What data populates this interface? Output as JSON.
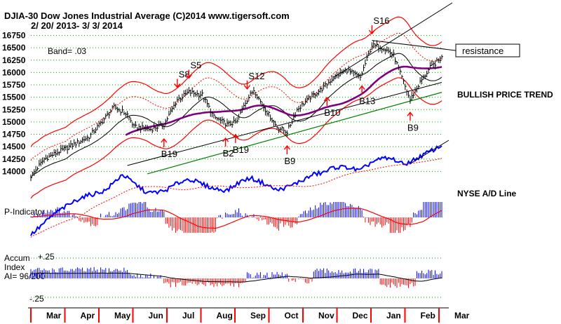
{
  "header": {
    "title": "DJIA-30  Dow Jones Industrial Average   (C)2014 www.tigersoft.com",
    "date_range": "2/ 20/ 2013- 3/ 3/ 2014",
    "band": "Band= .03"
  },
  "annotations": {
    "resistance": "resistance",
    "trend": "BULLISH PRICE TREND",
    "ad_line": "NYSE A/D Line",
    "p_indicator": "P-Indicator",
    "accum_line1": "Accum",
    "accum_line2": "Index",
    "accum_line3": "AI= 96/200",
    "accum_top": "+.25",
    "accum_bottom": "-.25"
  },
  "signals": [
    {
      "label": "S16",
      "type": "sell",
      "index": 205
    },
    {
      "label": "S8",
      "type": "sell",
      "index": 88
    },
    {
      "label": "S5",
      "type": "sell",
      "index": 95
    },
    {
      "label": "S12",
      "type": "sell",
      "index": 130
    },
    {
      "label": "B19",
      "type": "buy",
      "index": 80
    },
    {
      "label": "B2",
      "type": "buy",
      "index": 117
    },
    {
      "label": "B19",
      "type": "buy",
      "index": 123
    },
    {
      "label": "B9",
      "type": "buy",
      "index": 154
    },
    {
      "label": "B10",
      "type": "buy",
      "index": 178
    },
    {
      "label": "B13",
      "type": "buy",
      "index": 199
    },
    {
      "label": "B9",
      "type": "buy",
      "index": 228
    }
  ],
  "colors": {
    "price_bar": "#000000",
    "band": "#ff0000",
    "ma_purple": "#800080",
    "support_green": "#008000",
    "ad_line": "#0000ff",
    "p_pos": "#0000ff",
    "p_neg": "#ff0000",
    "grid": "#00aa00"
  },
  "chart_data": {
    "type": "line",
    "title": "DJIA-30  Dow Jones Industrial Average",
    "ylim": [
      13850,
      16800
    ],
    "y_ticks": [
      "16750",
      "16500",
      "16250",
      "16000",
      "15750",
      "15500",
      "15250",
      "15000",
      "14750",
      "14500",
      "14250",
      "14000"
    ],
    "x_ticks": [
      "Mar",
      "Apr",
      "May",
      "Jun",
      "Jul",
      "Aug",
      "Sep",
      "Oct",
      "Nov",
      "Dec",
      "Jan",
      "Feb",
      "Mar"
    ],
    "series": [
      {
        "name": "DJIA-30",
        "points": [
          [
            0,
            13900
          ],
          [
            8,
            14250
          ],
          [
            20,
            14450
          ],
          [
            35,
            14700
          ],
          [
            50,
            15300
          ],
          [
            58,
            15150
          ],
          [
            62,
            14900
          ],
          [
            72,
            14850
          ],
          [
            80,
            14950
          ],
          [
            88,
            15450
          ],
          [
            95,
            15600
          ],
          [
            103,
            15550
          ],
          [
            110,
            15100
          ],
          [
            118,
            14950
          ],
          [
            124,
            15000
          ],
          [
            128,
            15350
          ],
          [
            134,
            15650
          ],
          [
            140,
            15300
          ],
          [
            148,
            14900
          ],
          [
            154,
            14800
          ],
          [
            160,
            15250
          ],
          [
            168,
            15500
          ],
          [
            176,
            15700
          ],
          [
            182,
            15900
          ],
          [
            190,
            16050
          ],
          [
            198,
            15900
          ],
          [
            205,
            16550
          ],
          [
            212,
            16500
          ],
          [
            218,
            16350
          ],
          [
            224,
            15800
          ],
          [
            228,
            15450
          ],
          [
            234,
            15800
          ],
          [
            240,
            16100
          ],
          [
            247,
            16300
          ]
        ]
      },
      {
        "name": "NYSE A/D Line",
        "points": [
          [
            0,
            0.0
          ],
          [
            15,
            0.25
          ],
          [
            30,
            0.42
          ],
          [
            45,
            0.5
          ],
          [
            55,
            0.68
          ],
          [
            62,
            0.58
          ],
          [
            70,
            0.47
          ],
          [
            80,
            0.49
          ],
          [
            88,
            0.58
          ],
          [
            95,
            0.63
          ],
          [
            103,
            0.57
          ],
          [
            110,
            0.52
          ],
          [
            118,
            0.5
          ],
          [
            126,
            0.6
          ],
          [
            132,
            0.64
          ],
          [
            140,
            0.58
          ],
          [
            148,
            0.5
          ],
          [
            156,
            0.55
          ],
          [
            164,
            0.62
          ],
          [
            170,
            0.68
          ],
          [
            176,
            0.7
          ],
          [
            182,
            0.76
          ],
          [
            190,
            0.76
          ],
          [
            198,
            0.72
          ],
          [
            205,
            0.82
          ],
          [
            212,
            0.86
          ],
          [
            218,
            0.85
          ],
          [
            224,
            0.79
          ],
          [
            230,
            0.84
          ],
          [
            240,
            0.94
          ],
          [
            247,
            1.0
          ]
        ]
      }
    ]
  }
}
